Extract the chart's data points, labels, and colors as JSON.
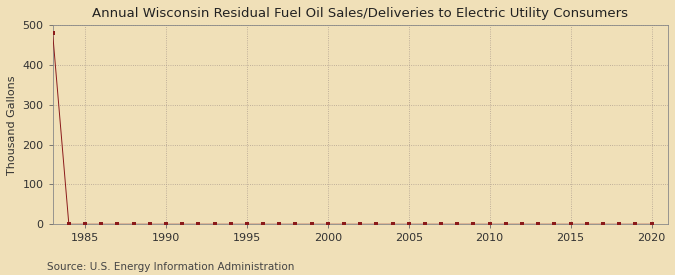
{
  "title": "Annual Wisconsin Residual Fuel Oil Sales/Deliveries to Electric Utility Consumers",
  "ylabel": "Thousand Gallons",
  "source": "Source: U.S. Energy Information Administration",
  "background_color": "#f0e0b8",
  "plot_bg_color": "#f0e0b8",
  "line_color": "#8b1a1a",
  "marker_color": "#8b1a1a",
  "grid_color": "#b0a090",
  "xlim": [
    1983,
    2021
  ],
  "ylim": [
    0,
    500
  ],
  "yticks": [
    0,
    100,
    200,
    300,
    400,
    500
  ],
  "xticks": [
    1985,
    1990,
    1995,
    2000,
    2005,
    2010,
    2015,
    2020
  ],
  "years": [
    1983,
    1984,
    1985,
    1986,
    1987,
    1988,
    1989,
    1990,
    1991,
    1992,
    1993,
    1994,
    1995,
    1996,
    1997,
    1998,
    1999,
    2000,
    2001,
    2002,
    2003,
    2004,
    2005,
    2006,
    2007,
    2008,
    2009,
    2010,
    2011,
    2012,
    2013,
    2014,
    2015,
    2016,
    2017,
    2018,
    2019,
    2020
  ],
  "values": [
    480,
    0,
    0,
    0,
    0,
    0,
    0,
    0,
    0,
    0,
    0,
    0,
    0,
    0,
    0,
    0,
    0,
    0,
    0,
    0,
    0,
    0,
    0,
    0,
    0,
    0,
    0,
    0,
    0,
    0,
    0,
    0,
    0,
    0,
    0,
    0,
    0,
    0
  ],
  "title_fontsize": 9.5,
  "tick_fontsize": 8,
  "ylabel_fontsize": 8,
  "source_fontsize": 7.5
}
